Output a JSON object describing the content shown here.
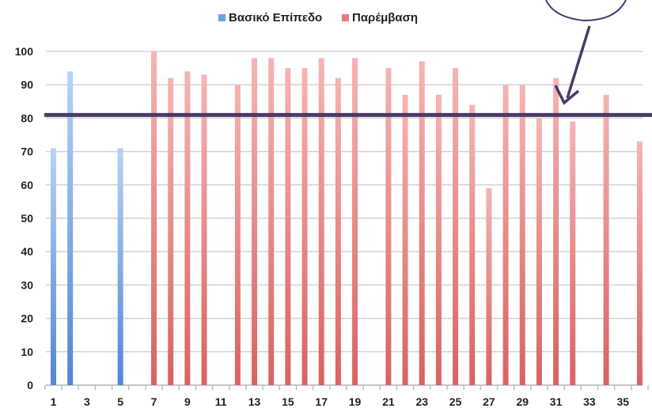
{
  "chart_data": {
    "type": "bar",
    "series": [
      {
        "name": "Βασικό Επίπεδο",
        "color": "#6f9fe3",
        "points": [
          {
            "x": 1,
            "y": 71
          },
          {
            "x": 2,
            "y": 94
          },
          {
            "x": 5,
            "y": 71
          }
        ]
      },
      {
        "name": "Παρέμβαση",
        "color": "#e77b7b",
        "points": [
          {
            "x": 7,
            "y": 100
          },
          {
            "x": 8,
            "y": 92
          },
          {
            "x": 9,
            "y": 94
          },
          {
            "x": 10,
            "y": 93
          },
          {
            "x": 12,
            "y": 90
          },
          {
            "x": 13,
            "y": 98
          },
          {
            "x": 14,
            "y": 98
          },
          {
            "x": 15,
            "y": 95
          },
          {
            "x": 16,
            "y": 95
          },
          {
            "x": 17,
            "y": 98
          },
          {
            "x": 18,
            "y": 92
          },
          {
            "x": 19,
            "y": 98
          },
          {
            "x": 21,
            "y": 95
          },
          {
            "x": 22,
            "y": 87
          },
          {
            "x": 23,
            "y": 97
          },
          {
            "x": 24,
            "y": 87
          },
          {
            "x": 25,
            "y": 95
          },
          {
            "x": 26,
            "y": 84
          },
          {
            "x": 27,
            "y": 59
          },
          {
            "x": 28,
            "y": 90
          },
          {
            "x": 29,
            "y": 90
          },
          {
            "x": 30,
            "y": 80
          },
          {
            "x": 31,
            "y": 92
          },
          {
            "x": 32,
            "y": 79
          },
          {
            "x": 34,
            "y": 87
          },
          {
            "x": 36,
            "y": 73
          }
        ]
      }
    ],
    "x_range": [
      1,
      36
    ],
    "x_tick_labels": [
      "1",
      "3",
      "5",
      "7",
      "9",
      "11",
      "13",
      "15",
      "17",
      "19",
      "21",
      "23",
      "25",
      "27",
      "29",
      "31",
      "33",
      "35"
    ],
    "ylim": [
      0,
      100
    ],
    "y_ticks": [
      0,
      10,
      20,
      30,
      40,
      50,
      60,
      70,
      80,
      90,
      100
    ],
    "grid": "horizontal",
    "legend_position": "top",
    "reference_line": {
      "y": 80,
      "color": "#4a3a6a"
    },
    "annotation": {
      "type": "arrow-callout",
      "color": "#4a3a6a"
    },
    "title": "",
    "xlabel": "",
    "ylabel": ""
  }
}
